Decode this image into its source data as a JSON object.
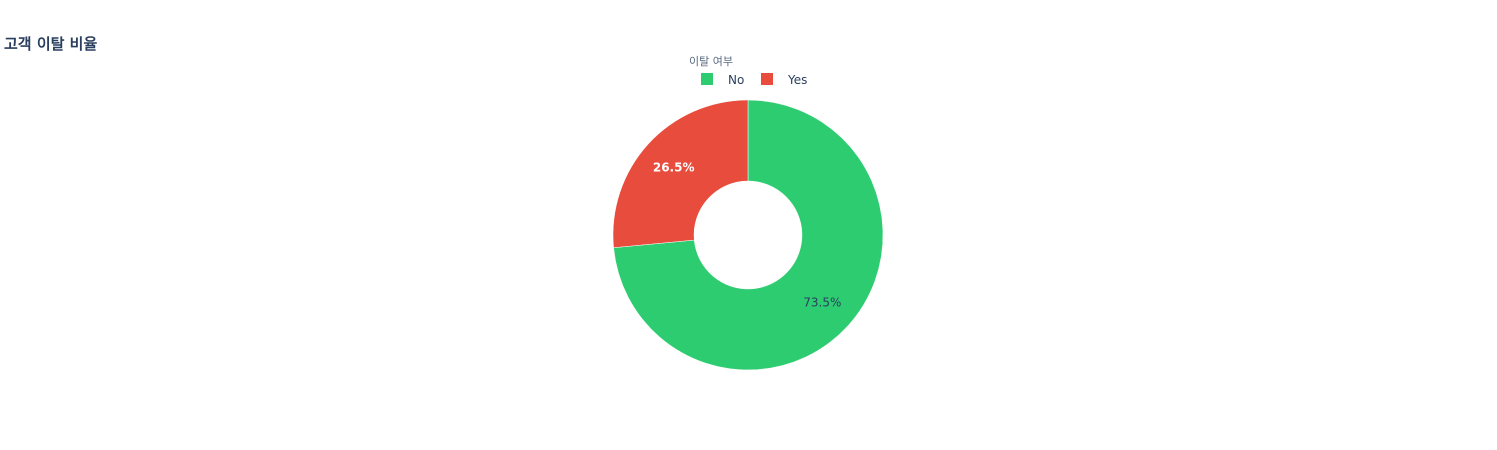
{
  "chart_data": {
    "type": "pie",
    "hole": true,
    "title": "고객 이탈 비율",
    "legend_title": "이탈 여부",
    "legend_position": "top-center",
    "categories": [
      "No",
      "Yes"
    ],
    "values": [
      73.5,
      26.5
    ],
    "labels": [
      "73.5%",
      "26.5%"
    ],
    "colors": [
      "#2ecc71",
      "#e74c3c"
    ],
    "label_colors": [
      "#2a3f5f",
      "#ffffff"
    ]
  }
}
